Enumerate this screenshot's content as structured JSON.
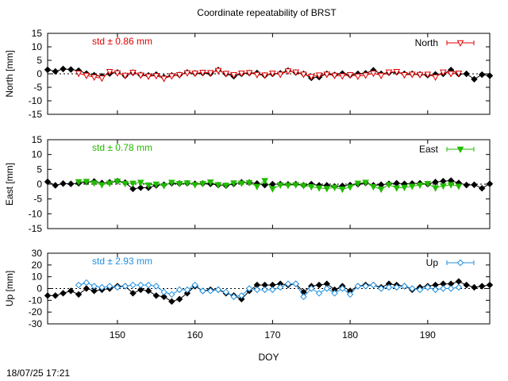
{
  "title": "Coordinate repeatability of BRST",
  "timestamp": "18/07/25 17:21",
  "colors": {
    "north": "#e00000",
    "east": "#22bb00",
    "up": "#1f8fe0",
    "reference": "#000000"
  },
  "chart_data": [
    {
      "type": "line",
      "panel": "north",
      "ylabel": "North [mm]",
      "ylim": [
        -15,
        15
      ],
      "yticks": [
        15,
        10,
        5,
        0,
        -5,
        -10,
        -15
      ],
      "xlim": [
        141,
        198
      ],
      "xticks": [],
      "std_label": "std ± 0.86 mm",
      "grid": false,
      "legend": "top-right",
      "series": [
        {
          "name": "North",
          "marker": "triangle-down-open",
          "x": [
            145,
            146,
            147,
            148,
            149,
            150,
            151,
            152,
            153,
            154,
            155,
            156,
            157,
            158,
            159,
            160,
            161,
            162,
            163,
            164,
            165,
            166,
            167,
            168,
            169,
            170,
            171,
            172,
            173,
            174,
            175,
            176,
            177,
            178,
            179,
            180,
            181,
            182,
            183,
            184,
            185,
            186,
            187,
            188,
            189,
            190,
            191,
            192,
            193,
            194
          ],
          "y": [
            0.2,
            -0.6,
            -1.2,
            -1.6,
            0.8,
            0.3,
            -0.6,
            0.5,
            -0.5,
            -0.9,
            -0.7,
            -1.7,
            -0.8,
            -0.4,
            0.3,
            0.2,
            0.5,
            0.4,
            1.2,
            0.1,
            -0.4,
            0.2,
            0.4,
            -0.3,
            -0.5,
            0.2,
            -0.2,
            1.0,
            0.6,
            -0.2,
            -1.0,
            -0.5,
            -0.2,
            -0.6,
            -0.8,
            -0.4,
            -0.9,
            -0.5,
            0.2,
            -0.6,
            0.6,
            0.8,
            -0.4,
            -0.2,
            -0.3,
            -0.2,
            -1.2,
            0.6,
            0.1,
            0.2
          ]
        },
        {
          "name": "",
          "marker": "diamond-filled",
          "x": [
            141,
            142,
            143,
            144,
            145,
            146,
            147,
            148,
            149,
            150,
            151,
            152,
            153,
            154,
            155,
            156,
            157,
            158,
            159,
            160,
            161,
            162,
            163,
            164,
            165,
            166,
            167,
            168,
            169,
            170,
            171,
            172,
            173,
            174,
            175,
            176,
            177,
            178,
            179,
            180,
            181,
            182,
            183,
            184,
            185,
            186,
            187,
            188,
            189,
            190,
            191,
            192,
            193,
            194,
            195,
            196,
            197,
            198
          ],
          "y": [
            1.5,
            0.9,
            1.8,
            1.6,
            1.2,
            0.1,
            -0.5,
            -0.9,
            0.1,
            0.5,
            -0.7,
            0.4,
            -0.4,
            -0.6,
            -0.3,
            -1.3,
            -0.6,
            -0.4,
            0.5,
            0.2,
            0.3,
            0.1,
            1.4,
            0.0,
            -0.9,
            0.0,
            0.3,
            0.3,
            -0.6,
            0.0,
            0.2,
            1.2,
            0.5,
            0.0,
            -1.5,
            -1.2,
            0.0,
            -0.4,
            0.1,
            -0.5,
            0.0,
            0.2,
            1.3,
            0.0,
            0.4,
            0.6,
            0.0,
            0.0,
            -0.2,
            -0.5,
            -0.2,
            0.0,
            1.4,
            -0.1,
            0.0,
            -2.0,
            -0.3,
            -0.7
          ]
        }
      ]
    },
    {
      "type": "line",
      "panel": "east",
      "ylabel": "East [mm]",
      "ylim": [
        -15,
        15
      ],
      "yticks": [
        15,
        10,
        5,
        0,
        -5,
        -10,
        -15
      ],
      "xlim": [
        141,
        198
      ],
      "xticks": [],
      "std_label": "std ± 0.78 mm",
      "grid": false,
      "legend": "top-right",
      "series": [
        {
          "name": "East",
          "marker": "triangle-down-filled",
          "x": [
            145,
            146,
            147,
            148,
            149,
            150,
            151,
            152,
            153,
            154,
            155,
            156,
            157,
            158,
            159,
            160,
            161,
            162,
            163,
            164,
            165,
            166,
            167,
            168,
            169,
            170,
            171,
            172,
            173,
            174,
            175,
            176,
            177,
            178,
            179,
            180,
            181,
            182,
            183,
            184,
            185,
            186,
            187,
            188,
            189,
            190,
            191,
            192,
            193,
            194
          ],
          "y": [
            0.8,
            0.9,
            0.4,
            -0.2,
            0.3,
            1.0,
            0.2,
            0.3,
            0.6,
            -0.3,
            0.0,
            -0.5,
            0.6,
            0.2,
            0.4,
            -0.2,
            0.2,
            0.7,
            -0.2,
            -0.4,
            0.4,
            0.3,
            0.5,
            -0.8,
            1.2,
            -1.6,
            -0.3,
            -0.4,
            -0.2,
            -0.5,
            -0.9,
            -1.3,
            -1.5,
            -1.1,
            -1.7,
            -1.0,
            0.3,
            0.6,
            -0.9,
            -1.7,
            -0.2,
            -1.3,
            -1.1,
            -0.7,
            -0.3,
            0.2,
            -1.3,
            -0.6,
            -0.2,
            -0.7
          ]
        },
        {
          "name": "",
          "marker": "diamond-filled",
          "x": [
            141,
            142,
            143,
            144,
            145,
            146,
            147,
            148,
            149,
            150,
            151,
            152,
            153,
            154,
            155,
            156,
            157,
            158,
            159,
            160,
            161,
            162,
            163,
            164,
            165,
            166,
            167,
            168,
            169,
            170,
            171,
            172,
            173,
            174,
            175,
            176,
            177,
            178,
            179,
            180,
            181,
            182,
            183,
            184,
            185,
            186,
            187,
            188,
            189,
            190,
            191,
            192,
            193,
            194,
            195,
            196,
            197,
            198
          ],
          "y": [
            0.8,
            -0.4,
            0.2,
            0.1,
            0.3,
            0.7,
            0.9,
            0.4,
            0.6,
            1.0,
            0.5,
            -1.6,
            -1.2,
            -1.2,
            -0.4,
            -0.2,
            0.3,
            0.2,
            0.3,
            0.1,
            0.2,
            0.1,
            -0.3,
            -0.5,
            0.1,
            0.6,
            0.5,
            0.2,
            -0.3,
            0.0,
            0.0,
            -0.1,
            0.0,
            -0.4,
            0.0,
            -0.4,
            -0.4,
            -0.8,
            -0.6,
            -0.3,
            0.0,
            0.4,
            -0.4,
            -0.2,
            0.1,
            0.3,
            0.1,
            0.2,
            0.3,
            0.0,
            0.7,
            1.0,
            1.2,
            0.4,
            -0.3,
            -0.2,
            -1.4,
            0.1
          ]
        }
      ]
    },
    {
      "type": "line",
      "panel": "up",
      "ylabel": "Up [mm]",
      "ylim": [
        -30,
        30
      ],
      "yticks": [
        30,
        20,
        10,
        0,
        -10,
        -20,
        -30
      ],
      "xlim": [
        141,
        198
      ],
      "xticks": [
        150,
        160,
        170,
        180,
        190
      ],
      "xlabel": "DOY",
      "std_label": "std ± 2.93 mm",
      "grid": false,
      "legend": "top-right",
      "series": [
        {
          "name": "Up",
          "marker": "diamond-open",
          "x": [
            145,
            146,
            147,
            148,
            149,
            150,
            151,
            152,
            153,
            154,
            155,
            156,
            157,
            158,
            159,
            160,
            161,
            162,
            163,
            164,
            165,
            166,
            167,
            168,
            169,
            170,
            171,
            172,
            173,
            174,
            175,
            176,
            177,
            178,
            179,
            180,
            181,
            182,
            183,
            184,
            185,
            186,
            187,
            188,
            189,
            190,
            191,
            192,
            193,
            194
          ],
          "y": [
            3,
            5,
            2,
            1,
            2,
            1,
            2,
            3,
            3,
            3,
            2,
            -3,
            -5,
            -1,
            -1,
            3,
            -2,
            -2,
            -1,
            -3,
            -7,
            -6,
            0,
            -1,
            -1,
            -1,
            1,
            4,
            4,
            -7,
            0,
            -4,
            0,
            -4,
            0,
            -5,
            2,
            2,
            3,
            0,
            1,
            1,
            2,
            0,
            -1,
            1,
            -1,
            0,
            0,
            1
          ]
        },
        {
          "name": "",
          "marker": "diamond-filled",
          "x": [
            141,
            142,
            143,
            144,
            145,
            146,
            147,
            148,
            149,
            150,
            151,
            152,
            153,
            154,
            155,
            156,
            157,
            158,
            159,
            160,
            161,
            162,
            163,
            164,
            165,
            166,
            167,
            168,
            169,
            170,
            171,
            172,
            173,
            174,
            175,
            176,
            177,
            178,
            179,
            180,
            181,
            182,
            183,
            184,
            185,
            186,
            187,
            188,
            189,
            190,
            191,
            192,
            193,
            194,
            195,
            196,
            197,
            198
          ],
          "y": [
            -6,
            -6,
            -4,
            -2,
            -5,
            0,
            -2,
            -1,
            0,
            2,
            2,
            -4,
            -1,
            -2,
            -6,
            -7,
            -11,
            -9,
            -4,
            2,
            -2,
            -1,
            -1,
            -4,
            -6,
            -9,
            -2,
            3,
            3,
            3,
            4,
            3,
            4,
            -3,
            2,
            3,
            4,
            -1,
            2,
            -2,
            2,
            3,
            3,
            1,
            4,
            3,
            2,
            -1,
            1,
            2,
            3,
            4,
            4,
            6,
            3,
            1,
            2,
            3
          ]
        }
      ]
    }
  ]
}
